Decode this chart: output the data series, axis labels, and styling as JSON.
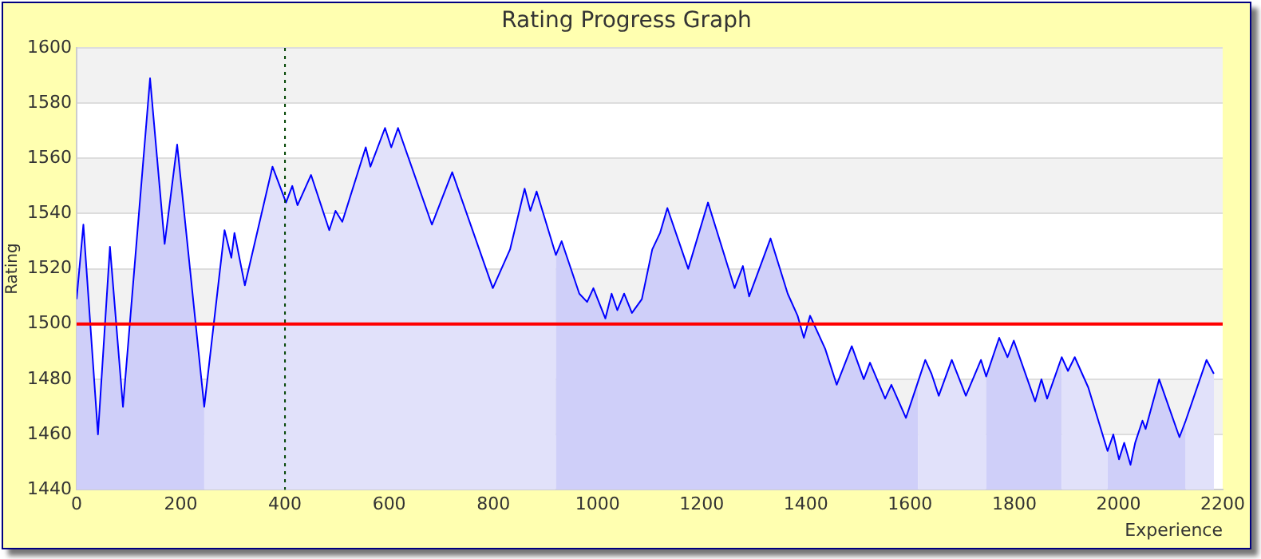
{
  "chart_data": {
    "type": "area",
    "title": "Rating Progress Graph",
    "xlabel": "Experience",
    "ylabel": "Rating",
    "x": [
      0,
      13,
      41,
      64,
      89,
      141,
      169,
      193,
      245,
      284,
      297,
      303,
      323,
      376,
      402,
      414,
      424,
      450,
      485,
      497,
      510,
      555,
      564,
      592,
      604,
      617,
      682,
      721,
      799,
      832,
      860,
      871,
      883,
      920,
      931,
      965,
      980,
      992,
      1015,
      1027,
      1038,
      1051,
      1066,
      1085,
      1105,
      1120,
      1134,
      1174,
      1212,
      1263,
      1279,
      1291,
      1332,
      1365,
      1384,
      1396,
      1408,
      1437,
      1459,
      1488,
      1511,
      1523,
      1552,
      1564,
      1592,
      1615,
      1629,
      1641,
      1655,
      1680,
      1707,
      1736,
      1746,
      1771,
      1787,
      1799,
      1840,
      1852,
      1863,
      1891,
      1903,
      1916,
      1942,
      1979,
      1990,
      2001,
      2011,
      2023,
      2032,
      2046,
      2052,
      2078,
      2117,
      2129,
      2169,
      2183
    ],
    "series": [
      {
        "color": "#0000ff",
        "values": [
          1509,
          1536,
          1460,
          1528,
          1470,
          1589,
          1529,
          1565,
          1470,
          1534,
          1524,
          1533,
          1514,
          1557,
          1544,
          1550,
          1543,
          1554,
          1534,
          1541,
          1537,
          1564,
          1557,
          1571,
          1564,
          1571,
          1536,
          1555,
          1513,
          1527,
          1549,
          1541,
          1548,
          1525,
          1530,
          1511,
          1508,
          1513,
          1502,
          1511,
          1505,
          1511,
          1504,
          1509,
          1527,
          1533,
          1542,
          1520,
          1544,
          1513,
          1521,
          1510,
          1531,
          1511,
          1503,
          1495,
          1503,
          1491,
          1478,
          1492,
          1480,
          1486,
          1473,
          1478,
          1466,
          1479,
          1487,
          1482,
          1474,
          1487,
          1474,
          1487,
          1481,
          1495,
          1488,
          1494,
          1472,
          1480,
          1473,
          1488,
          1483,
          1488,
          1477,
          1454,
          1460,
          1451,
          1457,
          1449,
          1457,
          1465,
          1462,
          1480,
          1459,
          1465,
          1487,
          1482
        ],
        "colors": [
          "#cfcff9",
          "#cfcff9",
          "#cfcff9",
          "#cfcff9",
          "#cfcff9",
          "#cfcff9",
          "#cfcff9",
          "#cfcff9",
          "#e1e1fa",
          "#e1e1fa",
          "#e1e1fa",
          "#e1e1fa",
          "#e1e1fa",
          "#e1e1fa",
          "#e1e1fa",
          "#e1e1fa",
          "#e1e1fa",
          "#e1e1fa",
          "#e1e1fa",
          "#e1e1fa",
          "#e1e1fa",
          "#e1e1fa",
          "#e1e1fa",
          "#e1e1fa",
          "#e1e1fa",
          "#e1e1fa",
          "#e1e1fa",
          "#e1e1fa",
          "#e1e1fa",
          "#e1e1fa",
          "#e1e1fa",
          "#e1e1fa",
          "#e1e1fa",
          "#cfcff9",
          "#cfcff9",
          "#cfcff9",
          "#cfcff9",
          "#cfcff9",
          "#cfcff9",
          "#cfcff9",
          "#cfcff9",
          "#cfcff9",
          "#cfcff9",
          "#cfcff9",
          "#cfcff9",
          "#cfcff9",
          "#cfcff9",
          "#cfcff9",
          "#cfcff9",
          "#cfcff9",
          "#cfcff9",
          "#cfcff9",
          "#cfcff9",
          "#cfcff9",
          "#cfcff9",
          "#cfcff9",
          "#cfcff9",
          "#cfcff9",
          "#cfcff9",
          "#cfcff9",
          "#cfcff9",
          "#cfcff9",
          "#cfcff9",
          "#cfcff9",
          "#cfcff9",
          "#e1e1fa",
          "#e1e1fa",
          "#e1e1fa",
          "#e1e1fa",
          "#e1e1fa",
          "#e1e1fa",
          "#e1e1fa",
          "#cfcff9",
          "#cfcff9",
          "#cfcff9",
          "#cfcff9",
          "#cfcff9",
          "#cfcff9",
          "#cfcff9",
          "#e1e1fa",
          "#e1e1fa",
          "#e1e1fa",
          "#e1e1fa",
          "#cfcff9",
          "#cfcff9",
          "#cfcff9",
          "#cfcff9",
          "#cfcff9",
          "#cfcff9",
          "#cfcff9",
          "#cfcff9",
          "#cfcff9",
          "#cfcff9",
          "#e1e1fa",
          "#e1e1fa",
          "#e1e1fa"
        ]
      }
    ],
    "xlim": [
      0,
      2200
    ],
    "xticks": [
      0,
      200,
      400,
      600,
      800,
      1000,
      1200,
      1400,
      1600,
      1800,
      2000,
      2200
    ],
    "ylim": [
      1440,
      1600
    ],
    "yticks": [
      1440,
      1460,
      1480,
      1500,
      1520,
      1540,
      1560,
      1580,
      1600
    ],
    "grid": "y",
    "legend": false,
    "marker": "none",
    "line_style": "solid",
    "ref_lines": [
      {
        "axis": "y",
        "value": 1500,
        "color": "#ff0000",
        "line_style": "solid"
      },
      {
        "axis": "x",
        "value": 400,
        "color": "#004400",
        "line_style": "dotted"
      }
    ]
  }
}
